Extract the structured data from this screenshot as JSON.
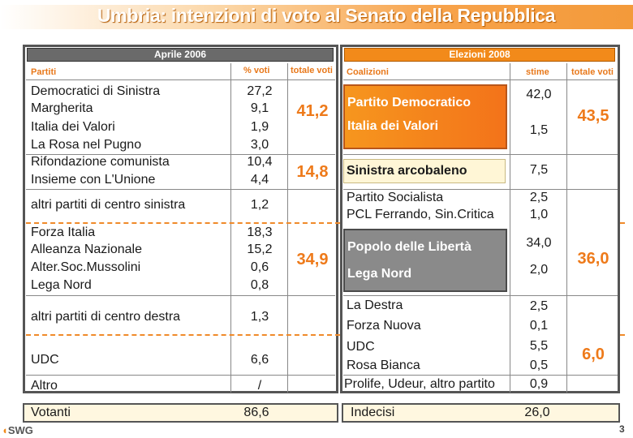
{
  "title": "Umbria: intenzioni di voto al Senato della Repubblica",
  "left": {
    "header": "Aprile 2006",
    "col_partiti": "Partiti",
    "col_voti": "% voti",
    "col_totale": "totale voti",
    "rows": [
      {
        "name": "Democratici di Sinistra",
        "value": "27,2"
      },
      {
        "name": "Margherita",
        "value": "9,1"
      },
      {
        "name": "Italia dei Valori",
        "value": "1,9"
      },
      {
        "name": "La  Rosa nel Pugno",
        "value": "3,0"
      },
      {
        "name": "Rifondazione comunista",
        "value": "10,4"
      },
      {
        "name": "Insieme con L'Unione",
        "value": "4,4"
      },
      {
        "name": "altri partiti di centro sinistra",
        "value": "1,2"
      },
      {
        "name": "Forza Italia",
        "value": "18,3"
      },
      {
        "name": "Alleanza Nazionale",
        "value": "15,2"
      },
      {
        "name": "Alter.Soc.Mussolini",
        "value": "0,6"
      },
      {
        "name": "Lega Nord",
        "value": "0,8"
      },
      {
        "name": "altri partiti di centro destra",
        "value": "1,3"
      },
      {
        "name": "UDC",
        "value": "6,6"
      },
      {
        "name": "Altro",
        "value": "/"
      }
    ],
    "totals": [
      "41,2",
      "14,8",
      "34,9"
    ],
    "footer_label": "Votanti",
    "footer_value": "86,6"
  },
  "right": {
    "header": "Elezioni 2008",
    "col_coalizioni": "Coalizioni",
    "col_stime": "stime",
    "col_totale": "totale voti",
    "box_pd": [
      "Partito Democratico",
      "Italia dei Valori"
    ],
    "pd_values": [
      "42,0",
      "1,5"
    ],
    "pd_total": "43,5",
    "sinistra": "Sinistra arcobaleno",
    "sinistra_value": "7,5",
    "rows_a": [
      {
        "name": "Partito Socialista",
        "value": "2,5"
      },
      {
        "name": "PCL Ferrando, Sin.Critica",
        "value": "1,0"
      }
    ],
    "box_pdl": [
      "Popolo delle Libertà",
      "Lega Nord"
    ],
    "pdl_values": [
      "34,0",
      "2,0"
    ],
    "pdl_total": "36,0",
    "rows_b": [
      {
        "name": "La Destra",
        "value": "2,5"
      },
      {
        "name": "Forza Nuova",
        "value": "0,1"
      }
    ],
    "rows_c": [
      {
        "name": "UDC",
        "value": "5,5"
      },
      {
        "name": "Rosa Bianca",
        "value": "0,5"
      }
    ],
    "udc_total": "6,0",
    "last": {
      "name": "Prolife, Udeur, altro partito",
      "value": "0,9"
    },
    "footer_label": "Indecisi",
    "footer_value": "26,0"
  },
  "logo": "SWG",
  "page_number": "3"
}
